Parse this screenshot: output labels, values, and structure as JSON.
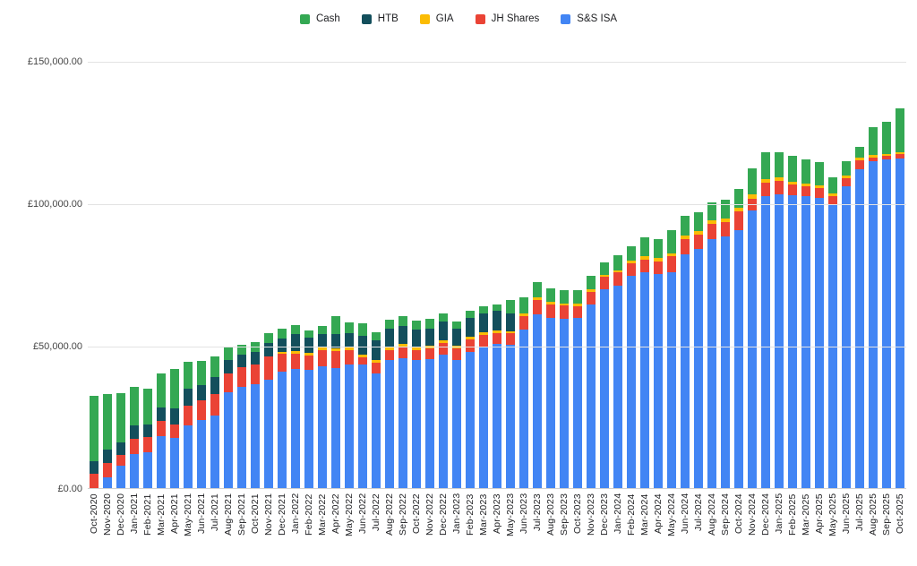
{
  "page": {
    "background": "#ffffff"
  },
  "legend": {
    "items": [
      {
        "label": "Cash",
        "color": "#34a853"
      },
      {
        "label": "HTB",
        "color": "#134f5c"
      },
      {
        "label": "GIA",
        "color": "#fbbc04"
      },
      {
        "label": "JH Shares",
        "color": "#ea4335"
      },
      {
        "label": "S&S ISA",
        "color": "#4285f4"
      }
    ]
  },
  "chart_data": {
    "type": "bar",
    "stacked": true,
    "title": "",
    "xlabel": "",
    "ylabel": "",
    "ylim": [
      0,
      150000
    ],
    "grid": "horizontal",
    "legend_position": "top",
    "currency": "GBP",
    "y_ticks": [
      {
        "label": "£0.00",
        "value": 0
      },
      {
        "label": "£50,000.00",
        "value": 50000
      },
      {
        "label": "£100,000.00",
        "value": 100000
      },
      {
        "label": "£150,000.00",
        "value": 150000
      }
    ],
    "stack_order_bottom_to_top": [
      "S&S ISA",
      "JH Shares",
      "GIA",
      "HTB",
      "Cash"
    ],
    "categories": [
      "Oct-2020",
      "Nov-2020",
      "Dec-2020",
      "Jan-2021",
      "Feb-2021",
      "Mar-2021",
      "Apr-2021",
      "May-2021",
      "Jun-2021",
      "Jul-2021",
      "Aug-2021",
      "Sep-2021",
      "Oct-2021",
      "Nov-2021",
      "Dec-2021",
      "Jan-2022",
      "Feb-2022",
      "Mar-2022",
      "Apr-2022",
      "May-2022",
      "Jun-2022",
      "Jul-2022",
      "Aug-2022",
      "Sep-2022",
      "Oct-2022",
      "Nov-2022",
      "Dec-2022",
      "Jan-2023",
      "Feb-2023",
      "Mar-2023",
      "Apr-2023",
      "May-2023",
      "Jun-2023",
      "Jul-2023",
      "Aug-2023",
      "Sep-2023",
      "Oct-2023",
      "Nov-2023",
      "Dec-2023",
      "Jan-2024",
      "Feb-2024",
      "Mar-2024",
      "Apr-2024",
      "May-2024",
      "Jun-2024",
      "Jul-2024",
      "Aug-2024",
      "Sep-2024",
      "Oct-2024",
      "Nov-2024",
      "Dec-2024",
      "Jan-2025",
      "Feb-2025",
      "Mar-2025",
      "Apr-2025",
      "May-2025",
      "Jun-2025",
      "Jul-2025",
      "Aug-2025",
      "Sep-2025",
      "Oct-2025"
    ],
    "series": [
      {
        "name": "Cash",
        "color": "#34a853",
        "values": [
          23000,
          19500,
          17300,
          13700,
          12300,
          12000,
          13900,
          9700,
          8600,
          7000,
          4200,
          3500,
          3500,
          3400,
          3400,
          3400,
          2600,
          2900,
          6100,
          3900,
          4200,
          2900,
          3100,
          3400,
          3100,
          3400,
          3100,
          2300,
          2600,
          2400,
          2300,
          4900,
          5600,
          5500,
          4700,
          4700,
          4600,
          4700,
          4400,
          5200,
          5000,
          6600,
          6800,
          8200,
          7000,
          6800,
          6300,
          6500,
          6600,
          9100,
          9400,
          8500,
          9000,
          8400,
          8100,
          5800,
          5200,
          3700,
          9700,
          11200,
          15400
        ]
      },
      {
        "name": "HTB",
        "color": "#134f5c",
        "values": [
          4500,
          4600,
          4400,
          4700,
          4700,
          4700,
          5400,
          6000,
          5400,
          6100,
          4900,
          4400,
          4600,
          4700,
          4800,
          5800,
          5200,
          4900,
          5200,
          4900,
          6600,
          6800,
          6500,
          6400,
          6000,
          6100,
          6500,
          6100,
          6600,
          6700,
          6800,
          6300,
          0,
          0,
          0,
          0,
          0,
          0,
          0,
          0,
          0,
          0,
          0,
          0,
          0,
          0,
          0,
          0,
          0,
          0,
          0,
          0,
          0,
          0,
          0,
          0,
          0,
          0,
          0,
          0,
          0
        ]
      },
      {
        "name": "GIA",
        "color": "#fbbc04",
        "values": [
          0,
          0,
          0,
          0,
          0,
          0,
          0,
          0,
          0,
          0,
          0,
          0,
          0,
          0,
          800,
          1000,
          1000,
          800,
          1000,
          1000,
          1000,
          1000,
          1000,
          900,
          1000,
          900,
          1000,
          1000,
          900,
          1000,
          1000,
          700,
          1000,
          1000,
          1000,
          800,
          800,
          800,
          800,
          800,
          1000,
          1300,
          1000,
          1000,
          1300,
          1300,
          1300,
          1200,
          1300,
          1400,
          1400,
          1300,
          1000,
          1000,
          1000,
          1000,
          1000,
          1000,
          1000,
          700,
          600
        ]
      },
      {
        "name": "JH Shares",
        "color": "#ea4335",
        "values": [
          5200,
          5000,
          3800,
          5200,
          5200,
          5400,
          5000,
          6800,
          6900,
          7500,
          6600,
          6800,
          6900,
          8100,
          6200,
          5300,
          5000,
          5800,
          5700,
          5200,
          2700,
          3700,
          3500,
          4000,
          3700,
          3800,
          4000,
          3900,
          4300,
          4200,
          3900,
          4000,
          4700,
          4900,
          4700,
          4600,
          4200,
          4400,
          4400,
          4600,
          4400,
          4400,
          4400,
          5700,
          5200,
          5000,
          5400,
          5200,
          6600,
          4200,
          4700,
          4700,
          3900,
          3500,
          3500,
          2800,
          2800,
          3100,
          1300,
          1400,
          1500
        ]
      },
      {
        "name": "S&S ISA",
        "color": "#4285f4",
        "values": [
          0,
          4200,
          8200,
          12400,
          12900,
          18500,
          17800,
          22300,
          24100,
          25800,
          33900,
          36000,
          36700,
          38400,
          41200,
          42200,
          41900,
          43000,
          42600,
          43600,
          43600,
          40700,
          45400,
          45900,
          45200,
          45600,
          47200,
          45400,
          48200,
          49900,
          50900,
          50600,
          55900,
          61400,
          60100,
          59800,
          60100,
          64800,
          70000,
          71400,
          74700,
          76100,
          75600,
          76100,
          82400,
          84200,
          87600,
          88600,
          91000,
          97800,
          102700,
          103600,
          103100,
          102700,
          102200,
          99900,
          106200,
          112200,
          115100,
          115600,
          116000
        ]
      }
    ]
  }
}
